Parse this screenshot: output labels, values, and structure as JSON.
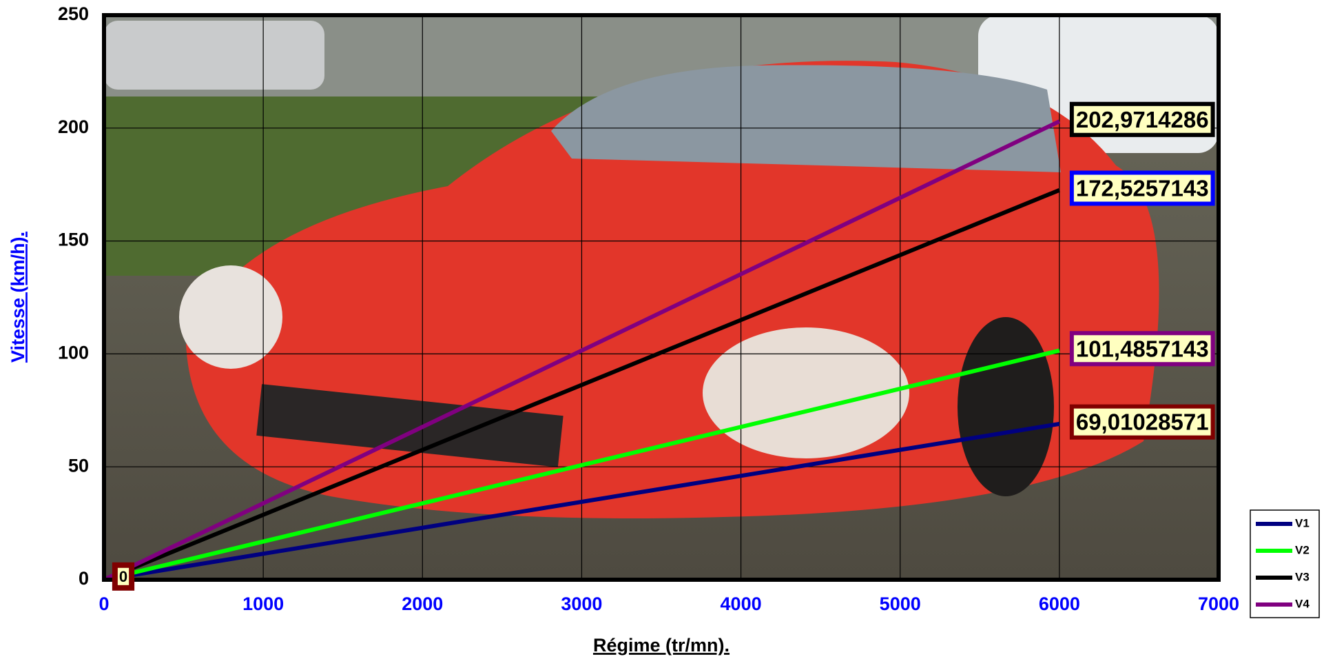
{
  "chart_data": {
    "type": "line",
    "x_label": "Régime (tr/mn).",
    "y_label": "Vitesse (km/h).",
    "x": [
      0,
      6000
    ],
    "series": [
      {
        "name": "V1",
        "color": "#000080",
        "values": [
          0,
          69.01028571
        ],
        "value_labels": [
          "0",
          "69,01028571"
        ],
        "label_border": "#800000"
      },
      {
        "name": "V2",
        "color": "#00ff00",
        "values": [
          0,
          101.4857143
        ],
        "value_labels": [
          null,
          "101,4857143"
        ],
        "label_border": "#800080"
      },
      {
        "name": "V3",
        "color": "#000000",
        "values": [
          0,
          172.5257143
        ],
        "value_labels": [
          null,
          "172,5257143"
        ],
        "label_border": "#0000ff"
      },
      {
        "name": "V4",
        "color": "#800080",
        "values": [
          0,
          202.9714286
        ],
        "value_labels": [
          null,
          "202,9714286"
        ],
        "label_border": "#000000"
      }
    ],
    "xlim": [
      0,
      7000
    ],
    "xticks": [
      0,
      1000,
      2000,
      3000,
      4000,
      5000,
      6000,
      7000
    ],
    "ylim": [
      0,
      250
    ],
    "yticks": [
      0,
      50,
      100,
      150,
      200,
      250
    ],
    "grid": true,
    "legend": "right"
  }
}
